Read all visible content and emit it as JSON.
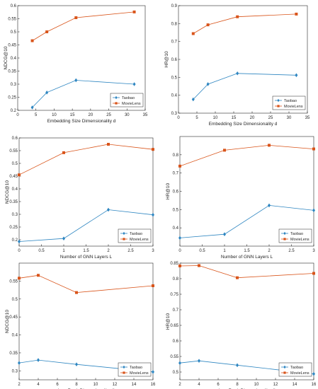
{
  "colors": {
    "taobao": "#2E86C1",
    "movielens": "#D9541A",
    "axis": "#262626",
    "background": "#ffffff"
  },
  "chart_data": [
    {
      "type": "line",
      "xlabel": "Embedding Size Dimensionality d",
      "ylabel": "NDCG@10",
      "xlim": [
        0,
        35
      ],
      "ylim": [
        0.2,
        0.6
      ],
      "xticks": [
        0,
        5,
        10,
        15,
        20,
        25,
        30,
        35
      ],
      "yticks": [
        0.2,
        0.25,
        0.3,
        0.35,
        0.4,
        0.45,
        0.5,
        0.55,
        0.6
      ],
      "x": [
        4,
        8,
        16,
        32
      ],
      "legend_position": "bottom-right",
      "series": [
        {
          "name": "Taobao",
          "values": [
            0.211,
            0.268,
            0.315,
            0.3
          ]
        },
        {
          "name": "MovieLens",
          "values": [
            0.466,
            0.5,
            0.554,
            0.576
          ]
        }
      ]
    },
    {
      "type": "line",
      "xlabel": "Embedding Size Dimensionality d",
      "ylabel": "HR@10",
      "xlim": [
        0,
        35
      ],
      "ylim": [
        0.3,
        0.9
      ],
      "xticks": [
        0,
        5,
        10,
        15,
        20,
        25,
        30,
        35
      ],
      "yticks": [
        0.3,
        0.4,
        0.5,
        0.6,
        0.7,
        0.8,
        0.9
      ],
      "x": [
        4,
        8,
        16,
        32
      ],
      "legend_position": "bottom-right",
      "series": [
        {
          "name": "Taobao",
          "values": [
            0.377,
            0.462,
            0.522,
            0.512
          ]
        },
        {
          "name": "MovieLens",
          "values": [
            0.744,
            0.793,
            0.838,
            0.853
          ]
        }
      ]
    },
    {
      "type": "line",
      "xlabel": "Number of GNN Layers L",
      "ylabel": "NDCG@10",
      "xlim": [
        0,
        3
      ],
      "ylim": [
        0.175,
        0.6
      ],
      "xticks": [
        0,
        0.5,
        1,
        1.5,
        2,
        2.5,
        3
      ],
      "yticks": [
        0.2,
        0.25,
        0.3,
        0.35,
        0.4,
        0.45,
        0.5,
        0.55,
        0.6
      ],
      "x": [
        0,
        1,
        2,
        3
      ],
      "legend_position": "bottom-right",
      "series": [
        {
          "name": "Taobao",
          "values": [
            0.193,
            0.205,
            0.318,
            0.298
          ]
        },
        {
          "name": "MovieLens",
          "values": [
            0.455,
            0.542,
            0.575,
            0.555
          ]
        }
      ]
    },
    {
      "type": "line",
      "xlabel": "Number of GNN Layers L",
      "ylabel": "HR@10",
      "xlim": [
        0,
        3
      ],
      "ylim": [
        0.3,
        0.9
      ],
      "xticks": [
        0,
        0.5,
        1,
        1.5,
        2,
        2.5,
        3
      ],
      "yticks": [
        0.4,
        0.5,
        0.6,
        0.7,
        0.8
      ],
      "x": [
        0,
        1,
        2,
        3
      ],
      "legend_position": "bottom-right",
      "series": [
        {
          "name": "Taobao",
          "values": [
            0.345,
            0.365,
            0.523,
            0.496
          ]
        },
        {
          "name": "MovieLens",
          "values": [
            0.738,
            0.825,
            0.852,
            0.832
          ]
        }
      ]
    },
    {
      "type": "line",
      "xlabel": "Low-Rank Dimensionality d'",
      "ylabel": "NDCG@10",
      "xlim": [
        2,
        16
      ],
      "ylim": [
        0.275,
        0.6
      ],
      "xticks": [
        2,
        4,
        6,
        8,
        10,
        12,
        14,
        16
      ],
      "yticks": [
        0.3,
        0.35,
        0.4,
        0.45,
        0.5,
        0.55
      ],
      "x": [
        2,
        4,
        8,
        16
      ],
      "legend_position": "bottom-right",
      "series": [
        {
          "name": "Taobao",
          "values": [
            0.322,
            0.33,
            0.318,
            0.297
          ]
        },
        {
          "name": "MovieLens",
          "values": [
            0.558,
            0.566,
            0.518,
            0.537
          ]
        }
      ]
    },
    {
      "type": "line",
      "xlabel": "Low-Rank Dimensionality d'",
      "ylabel": "HR@10",
      "xlim": [
        2,
        16
      ],
      "ylim": [
        0.475,
        0.85
      ],
      "xticks": [
        2,
        4,
        6,
        8,
        10,
        12,
        14,
        16
      ],
      "yticks": [
        0.5,
        0.55,
        0.6,
        0.65,
        0.7,
        0.75,
        0.8,
        0.85
      ],
      "x": [
        2,
        4,
        8,
        16
      ],
      "legend_position": "bottom-right",
      "series": [
        {
          "name": "Taobao",
          "values": [
            0.529,
            0.536,
            0.522,
            0.494
          ]
        },
        {
          "name": "MovieLens",
          "values": [
            0.841,
            0.842,
            0.803,
            0.817
          ]
        }
      ]
    }
  ]
}
